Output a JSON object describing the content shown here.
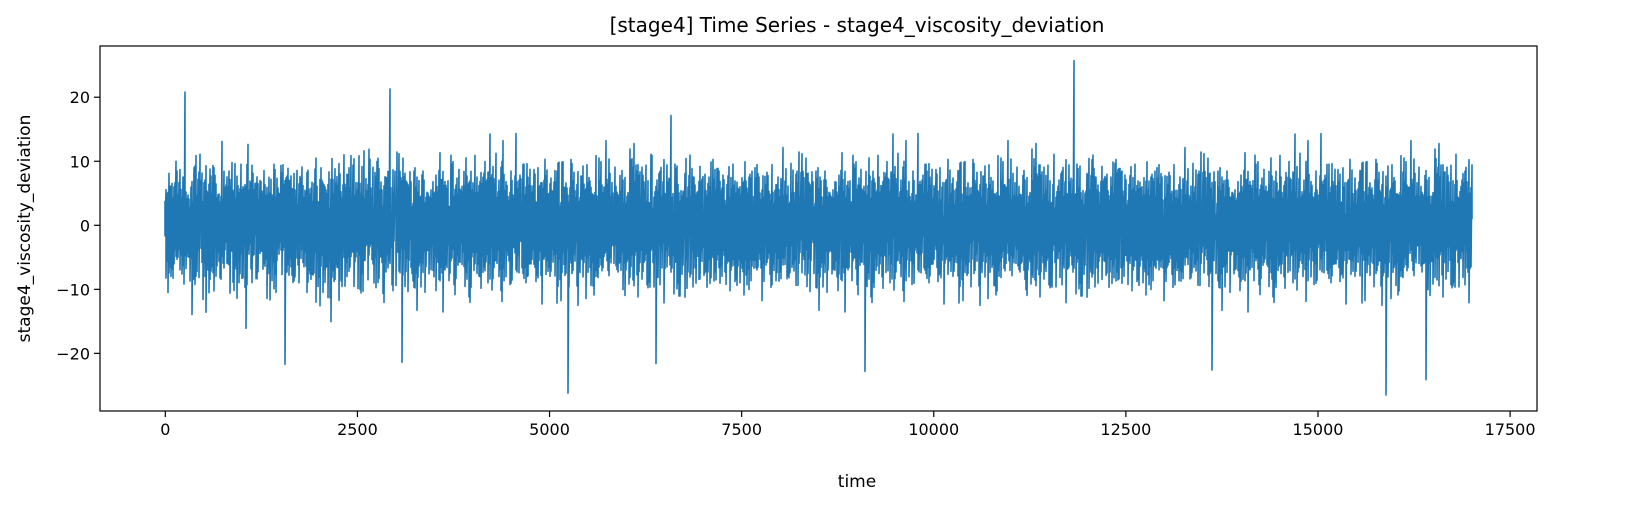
{
  "chart_data": {
    "type": "line",
    "title": "[stage4] Time Series - stage4_viscosity_deviation",
    "xlabel": "time",
    "ylabel": "stage4_viscosity_deviation",
    "xlim": [
      -850,
      17850
    ],
    "ylim": [
      -29,
      28
    ],
    "x_ticks": [
      0,
      2500,
      5000,
      7500,
      10000,
      12500,
      15000,
      17500
    ],
    "x_tick_labels": [
      "0",
      "2500",
      "5000",
      "7500",
      "10000",
      "12500",
      "15000",
      "17500"
    ],
    "y_ticks": [
      -20,
      -10,
      0,
      10,
      20
    ],
    "y_tick_labels": [
      "−20",
      "−10",
      "0",
      "10",
      "20"
    ],
    "grid": false,
    "series": [
      {
        "color": "#1f77b4",
        "x_start": 0,
        "x_end": 17000,
        "point_count": 17001,
        "center": 0,
        "typical_range": [
          -12,
          12
        ],
        "extremes": [
          {
            "x": 250,
            "y": 20.8
          },
          {
            "x": 2920,
            "y": 21.3
          },
          {
            "x": 11820,
            "y": 25.7
          },
          {
            "x": 1560,
            "y": -21.7
          },
          {
            "x": 3080,
            "y": -21.4
          },
          {
            "x": 5240,
            "y": -26.2
          },
          {
            "x": 6380,
            "y": -21.6
          },
          {
            "x": 9100,
            "y": -22.8
          },
          {
            "x": 13620,
            "y": -22.6
          },
          {
            "x": 15880,
            "y": -26.5
          },
          {
            "x": 16400,
            "y": -24.1
          }
        ]
      }
    ]
  }
}
